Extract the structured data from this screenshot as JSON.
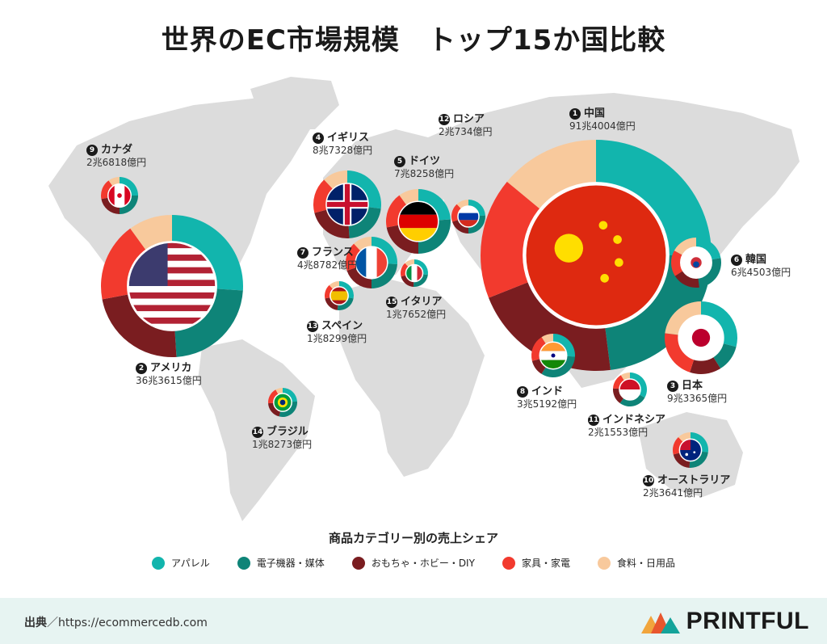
{
  "title": "世界のEC市場規模　トップ15か国比較",
  "legend_title": "商品カテゴリー別の売上シェア",
  "footer": {
    "source_label": "出典",
    "source_sep": "／",
    "source_url": "https://ecommercedb.com",
    "brand": "PRINTFUL"
  },
  "colors": {
    "apparel": "#12b5ad",
    "electronics": "#0e8478",
    "toys": "#7a1d20",
    "furniture": "#f23a2e",
    "food": "#f8c99c",
    "map": "#dcdcdc"
  },
  "chart_data": {
    "type": "pie",
    "title": "世界のEC市場規模　トップ15か国比較",
    "categories": [
      "アパレル",
      "電子機器・媒体",
      "おもちゃ・ホビー・DIY",
      "家具・家電",
      "食料・日用品"
    ],
    "countries": [
      {
        "rank": "1",
        "name": "中国",
        "value": "91兆4004億円",
        "oku": 914004,
        "shares": [
          0.25,
          0.23,
          0.21,
          0.17,
          0.14
        ]
      },
      {
        "rank": "2",
        "name": "アメリカ",
        "value": "36兆3615億円",
        "oku": 363615,
        "shares": [
          0.26,
          0.23,
          0.23,
          0.18,
          0.1
        ]
      },
      {
        "rank": "3",
        "name": "日本",
        "value": "9兆3365億円",
        "oku": 93365,
        "shares": [
          0.29,
          0.12,
          0.14,
          0.22,
          0.23
        ]
      },
      {
        "rank": "4",
        "name": "イギリス",
        "value": "8兆7328億円",
        "oku": 87328,
        "shares": [
          0.27,
          0.22,
          0.22,
          0.17,
          0.12
        ]
      },
      {
        "rank": "5",
        "name": "ドイツ",
        "value": "7兆8258億円",
        "oku": 78258,
        "shares": [
          0.24,
          0.26,
          0.22,
          0.18,
          0.1
        ]
      },
      {
        "rank": "6",
        "name": "韓国",
        "value": "6兆4503億円",
        "oku": 64503,
        "shares": [
          0.22,
          0.26,
          0.18,
          0.17,
          0.17
        ]
      },
      {
        "rank": "7",
        "name": "フランス",
        "value": "4兆8782億円",
        "oku": 48782,
        "shares": [
          0.26,
          0.24,
          0.2,
          0.18,
          0.12
        ]
      },
      {
        "rank": "8",
        "name": "インド",
        "value": "3兆5192億円",
        "oku": 35192,
        "shares": [
          0.26,
          0.33,
          0.12,
          0.2,
          0.09
        ]
      },
      {
        "rank": "9",
        "name": "カナダ",
        "value": "2兆6818億円",
        "oku": 26818,
        "shares": [
          0.25,
          0.25,
          0.22,
          0.18,
          0.1
        ]
      },
      {
        "rank": "10",
        "name": "オーストラリア",
        "value": "2兆3641億円",
        "oku": 23641,
        "shares": [
          0.27,
          0.24,
          0.2,
          0.17,
          0.12
        ]
      },
      {
        "rank": "11",
        "name": "インドネシア",
        "value": "2兆1553億円",
        "oku": 21553,
        "shares": [
          0.33,
          0.27,
          0.16,
          0.15,
          0.09
        ]
      },
      {
        "rank": "12",
        "name": "ロシア",
        "value": "2兆734億円",
        "oku": 20734,
        "shares": [
          0.24,
          0.26,
          0.2,
          0.18,
          0.12
        ]
      },
      {
        "rank": "13",
        "name": "スペイン",
        "value": "1兆8299億円",
        "oku": 18299,
        "shares": [
          0.28,
          0.24,
          0.2,
          0.16,
          0.12
        ]
      },
      {
        "rank": "14",
        "name": "ブラジル",
        "value": "1兆8273億円",
        "oku": 18273,
        "shares": [
          0.24,
          0.3,
          0.2,
          0.18,
          0.08
        ]
      },
      {
        "rank": "15",
        "name": "イタリア",
        "value": "1兆7652億円",
        "oku": 17652,
        "shares": [
          0.27,
          0.24,
          0.2,
          0.17,
          0.12
        ]
      }
    ]
  }
}
